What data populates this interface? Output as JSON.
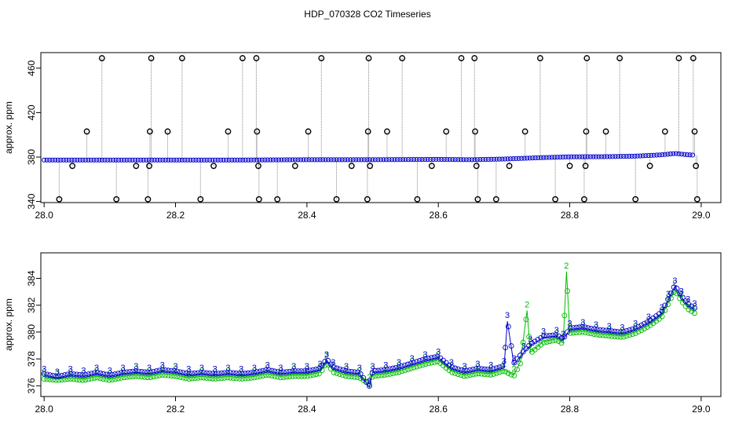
{
  "title": "HDP_070328  CO2 Timeseries",
  "colors": {
    "black": "#000000",
    "blue": "#0000cc",
    "green": "#00bb00",
    "cyan": "#00cccc",
    "grey": "#888888"
  },
  "chart_data": [
    {
      "type": "scatter",
      "ylabel": "approx. ppm",
      "xlim": [
        27.995,
        29.03
      ],
      "ylim": [
        339,
        474
      ],
      "xticks": [
        28.0,
        28.2,
        28.4,
        28.6,
        28.8,
        29.0
      ],
      "xtick_labels": [
        "28.0",
        "28.2",
        "28.4",
        "28.6",
        "28.8",
        "29.0"
      ],
      "yticks": [
        340,
        380,
        420,
        460
      ],
      "ytick_labels": [
        "340",
        "380",
        "420",
        "460"
      ],
      "baseline": [
        [
          28.0,
          377.3
        ],
        [
          28.3,
          377.3
        ],
        [
          28.4,
          377.6
        ],
        [
          28.5,
          377.6
        ],
        [
          28.6,
          377.9
        ],
        [
          28.65,
          377.6
        ],
        [
          28.7,
          378.2
        ],
        [
          28.76,
          379.5
        ],
        [
          28.8,
          380.2
        ],
        [
          28.85,
          380.3
        ],
        [
          28.9,
          380.8
        ],
        [
          28.94,
          382.0
        ],
        [
          28.96,
          383.2
        ],
        [
          28.98,
          382.0
        ],
        [
          28.99,
          381.7
        ]
      ],
      "outliers": [
        {
          "x": 28.023,
          "y": 342
        },
        {
          "x": 28.043,
          "y": 372
        },
        {
          "x": 28.065,
          "y": 403
        },
        {
          "x": 28.088,
          "y": 469
        },
        {
          "x": 28.11,
          "y": 342
        },
        {
          "x": 28.14,
          "y": 372
        },
        {
          "x": 28.158,
          "y": 342
        },
        {
          "x": 28.16,
          "y": 372
        },
        {
          "x": 28.161,
          "y": 403
        },
        {
          "x": 28.163,
          "y": 469
        },
        {
          "x": 28.188,
          "y": 403
        },
        {
          "x": 28.21,
          "y": 469
        },
        {
          "x": 28.238,
          "y": 342
        },
        {
          "x": 28.258,
          "y": 372
        },
        {
          "x": 28.28,
          "y": 403
        },
        {
          "x": 28.302,
          "y": 469
        },
        {
          "x": 28.323,
          "y": 469
        },
        {
          "x": 28.324,
          "y": 403
        },
        {
          "x": 28.326,
          "y": 372
        },
        {
          "x": 28.327,
          "y": 342
        },
        {
          "x": 28.355,
          "y": 342
        },
        {
          "x": 28.382,
          "y": 372
        },
        {
          "x": 28.402,
          "y": 403
        },
        {
          "x": 28.422,
          "y": 469
        },
        {
          "x": 28.445,
          "y": 342
        },
        {
          "x": 28.468,
          "y": 372
        },
        {
          "x": 28.492,
          "y": 342
        },
        {
          "x": 28.493,
          "y": 403
        },
        {
          "x": 28.494,
          "y": 469
        },
        {
          "x": 28.496,
          "y": 372
        },
        {
          "x": 28.522,
          "y": 403
        },
        {
          "x": 28.545,
          "y": 469
        },
        {
          "x": 28.568,
          "y": 342
        },
        {
          "x": 28.59,
          "y": 372
        },
        {
          "x": 28.612,
          "y": 403
        },
        {
          "x": 28.635,
          "y": 469
        },
        {
          "x": 28.655,
          "y": 469
        },
        {
          "x": 28.656,
          "y": 403
        },
        {
          "x": 28.658,
          "y": 372
        },
        {
          "x": 28.66,
          "y": 342
        },
        {
          "x": 28.688,
          "y": 342
        },
        {
          "x": 28.708,
          "y": 372
        },
        {
          "x": 28.732,
          "y": 403
        },
        {
          "x": 28.755,
          "y": 469
        },
        {
          "x": 28.778,
          "y": 342
        },
        {
          "x": 28.8,
          "y": 372
        },
        {
          "x": 28.822,
          "y": 342
        },
        {
          "x": 28.824,
          "y": 372
        },
        {
          "x": 28.825,
          "y": 403
        },
        {
          "x": 28.826,
          "y": 469
        },
        {
          "x": 28.855,
          "y": 403
        },
        {
          "x": 28.876,
          "y": 469
        },
        {
          "x": 28.9,
          "y": 342
        },
        {
          "x": 28.922,
          "y": 372
        },
        {
          "x": 28.945,
          "y": 403
        },
        {
          "x": 28.966,
          "y": 469
        },
        {
          "x": 28.988,
          "y": 469
        },
        {
          "x": 28.99,
          "y": 403
        },
        {
          "x": 28.992,
          "y": 372
        },
        {
          "x": 28.994,
          "y": 342
        }
      ]
    },
    {
      "type": "line",
      "ylabel": "approx. ppm",
      "xlim": [
        27.995,
        29.03
      ],
      "ylim": [
        375.2,
        385.9
      ],
      "xticks": [
        28.0,
        28.2,
        28.4,
        28.6,
        28.8,
        29.0
      ],
      "xtick_labels": [
        "28.0",
        "28.2",
        "28.4",
        "28.6",
        "28.8",
        "29.0"
      ],
      "yticks": [
        376,
        378,
        380,
        382,
        384
      ],
      "ytick_labels": [
        "376",
        "378",
        "380",
        "382",
        "384"
      ],
      "series": [
        {
          "label": "3",
          "x": [
            28.0,
            28.02,
            28.04,
            28.06,
            28.08,
            28.1,
            28.12,
            28.14,
            28.16,
            28.18,
            28.2,
            28.22,
            28.24,
            28.26,
            28.28,
            28.3,
            28.32,
            28.34,
            28.36,
            28.38,
            28.4,
            28.42,
            28.43,
            28.44,
            28.46,
            28.48,
            28.495,
            28.5,
            28.52,
            28.54,
            28.56,
            28.58,
            28.6,
            28.62,
            28.64,
            28.66,
            28.68,
            28.7,
            28.705,
            28.715,
            28.73,
            28.74,
            28.76,
            28.78,
            28.79,
            28.8,
            28.82,
            28.84,
            28.86,
            28.88,
            28.9,
            28.92,
            28.94,
            28.95,
            28.96,
            28.97,
            28.98,
            28.99
          ],
          "y": [
            376.8,
            376.6,
            376.8,
            376.7,
            376.9,
            376.7,
            376.9,
            377.0,
            376.9,
            377.1,
            377.0,
            376.8,
            376.9,
            376.8,
            376.9,
            376.8,
            376.9,
            377.1,
            376.9,
            377.0,
            377.0,
            377.2,
            377.9,
            377.3,
            377.0,
            376.9,
            375.9,
            377.0,
            377.1,
            377.3,
            377.6,
            377.9,
            378.1,
            377.3,
            377.0,
            377.2,
            377.1,
            377.4,
            380.8,
            377.6,
            378.5,
            379.0,
            379.6,
            379.7,
            379.4,
            380.2,
            380.3,
            380.1,
            380.0,
            379.9,
            380.2,
            380.7,
            381.4,
            382.4,
            383.4,
            382.6,
            382.0,
            381.7
          ]
        },
        {
          "label": "2",
          "x": [
            28.0,
            28.02,
            28.04,
            28.06,
            28.08,
            28.1,
            28.12,
            28.14,
            28.16,
            28.18,
            28.2,
            28.22,
            28.24,
            28.26,
            28.28,
            28.3,
            28.32,
            28.34,
            28.36,
            28.38,
            28.4,
            28.42,
            28.43,
            28.44,
            28.46,
            28.48,
            28.495,
            28.5,
            28.52,
            28.54,
            28.56,
            28.58,
            28.6,
            28.62,
            28.64,
            28.66,
            28.68,
            28.7,
            28.715,
            28.725,
            28.735,
            28.74,
            28.76,
            28.78,
            28.79,
            28.795,
            28.8,
            28.82,
            28.84,
            28.86,
            28.88,
            28.9,
            28.92,
            28.94,
            28.95,
            28.96,
            28.97,
            28.98,
            28.99
          ],
          "y": [
            376.6,
            376.5,
            376.6,
            376.5,
            376.7,
            376.5,
            376.7,
            376.8,
            376.7,
            376.9,
            376.8,
            376.6,
            376.7,
            376.6,
            376.7,
            376.6,
            376.7,
            376.9,
            376.7,
            376.8,
            376.8,
            377.0,
            377.8,
            377.1,
            376.8,
            376.7,
            376.2,
            376.8,
            376.9,
            377.1,
            377.4,
            377.7,
            377.9,
            377.1,
            376.8,
            377.0,
            376.9,
            377.2,
            376.8,
            377.8,
            381.6,
            378.5,
            379.3,
            379.5,
            379.2,
            384.5,
            380.0,
            380.1,
            379.9,
            379.8,
            379.7,
            380.0,
            380.5,
            381.2,
            382.2,
            383.2,
            382.4,
            381.8,
            381.5
          ]
        }
      ]
    }
  ]
}
